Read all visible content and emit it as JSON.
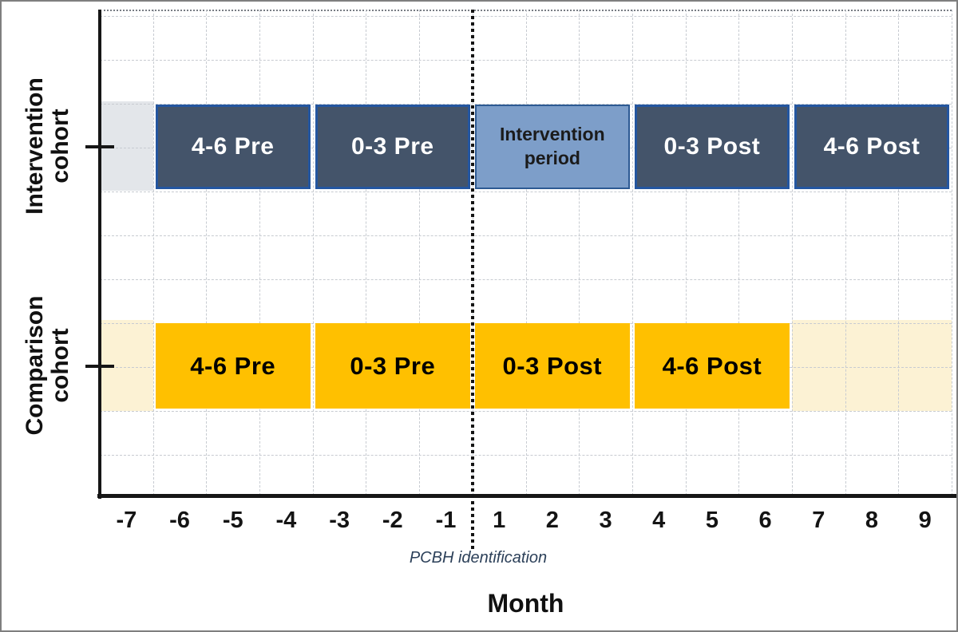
{
  "chart_data": {
    "type": "timeline-bar",
    "title": "",
    "xlabel": "Month",
    "x_tick_labels": [
      "-7",
      "-6",
      "-5",
      "-4",
      "-3",
      "-2",
      "-1",
      "1",
      "2",
      "3",
      "4",
      "5",
      "6",
      "7",
      "8",
      "9"
    ],
    "x_axis_note": "months relative to PCBH identification; no month 0 — dotted event line sits between -1 and 1",
    "event_marker": {
      "label": "PCBH identification",
      "between_ticks": [
        "-1",
        "1"
      ]
    },
    "grid": "dashed light gray, on",
    "colors": {
      "dark_fill": "#44546a",
      "dark_border": "#2456a0",
      "dark_text": "#ffffff",
      "light_fill": "#7d9ec9",
      "light_border": "#2d5a93",
      "light_text": "#1b1b1b",
      "orange_fill": "#ffc000",
      "orange_text": "#000000",
      "intervention_band": "#e3e6ea",
      "comparison_band": "#fcf2d4",
      "axis": "#161616",
      "event_line": "#141414"
    },
    "rows": [
      {
        "id": "intervention",
        "label": "Intervention cohort",
        "label_lines": [
          "Intervention",
          "cohort"
        ],
        "band_color_key": "intervention_band",
        "band_ranges": [
          {
            "month_start": -7,
            "month_end": -7
          }
        ],
        "segments": [
          {
            "label": "4-6 Pre",
            "month_start": -6,
            "month_end": -4,
            "style": "dark"
          },
          {
            "label": "0-3 Pre",
            "month_start": -3,
            "month_end": -1,
            "style": "dark"
          },
          {
            "label": "Intervention period",
            "lines": [
              "Intervention",
              "period"
            ],
            "month_start": 1,
            "month_end": 3,
            "style": "light"
          },
          {
            "label": "0-3 Post",
            "month_start": 4,
            "month_end": 6,
            "style": "dark"
          },
          {
            "label": "4-6 Post",
            "month_start": 7,
            "month_end": 9,
            "style": "dark"
          }
        ]
      },
      {
        "id": "comparison",
        "label": "Comparison cohort",
        "label_lines": [
          "Comparison",
          "cohort"
        ],
        "band_color_key": "comparison_band",
        "band_ranges": [
          {
            "month_start": -7,
            "month_end": -7
          },
          {
            "month_start": 7,
            "month_end": 9
          }
        ],
        "segments": [
          {
            "label": "4-6 Pre",
            "month_start": -6,
            "month_end": -4,
            "style": "orange"
          },
          {
            "label": "0-3 Pre",
            "month_start": -3,
            "month_end": -1,
            "style": "orange"
          },
          {
            "label": "0-3 Post",
            "month_start": 1,
            "month_end": 3,
            "style": "orange"
          },
          {
            "label": "4-6 Post",
            "month_start": 4,
            "month_end": 6,
            "style": "orange"
          }
        ]
      }
    ]
  }
}
